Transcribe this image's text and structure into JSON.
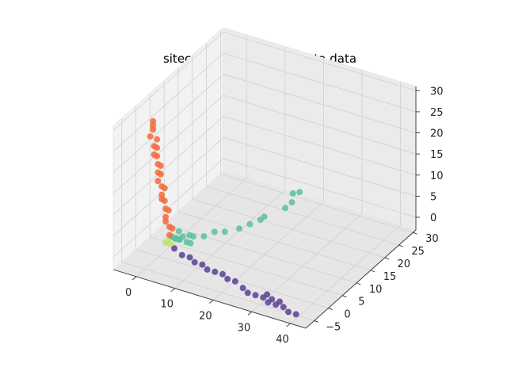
{
  "chart_data": {
    "type": "scatter",
    "projection": "3d",
    "title": "sitecore k=6 EM - pca_data data",
    "xlabel": "",
    "ylabel": "",
    "zlabel": "",
    "grid": true,
    "x_ticks": [
      "0",
      "10",
      "20",
      "30",
      "40"
    ],
    "y_ticks": [
      "−5",
      "0",
      "5",
      "10",
      "15",
      "20",
      "25",
      "30"
    ],
    "z_ticks": [
      "0",
      "5",
      "10",
      "15",
      "20",
      "25",
      "30"
    ],
    "xlim": [
      -6,
      44
    ],
    "ylim": [
      -8,
      31
    ],
    "zlim": [
      -3,
      31
    ],
    "series": [
      {
        "color": "#f26b3c",
        "points": [
          [
            -3,
            2,
            27
          ],
          [
            -3,
            2,
            26
          ],
          [
            -3,
            2,
            25
          ],
          [
            -3,
            1,
            24
          ],
          [
            -2,
            2,
            23
          ],
          [
            -2,
            1,
            22
          ],
          [
            -2,
            2,
            21
          ],
          [
            -2,
            1,
            20
          ],
          [
            -2,
            2,
            19
          ],
          [
            -1,
            1,
            18
          ],
          [
            -1,
            2,
            17
          ],
          [
            -1,
            1,
            16
          ],
          [
            -1,
            2,
            15
          ],
          [
            -1,
            1,
            14
          ],
          [
            0,
            1,
            13
          ],
          [
            0,
            2,
            12
          ],
          [
            0,
            1,
            11
          ],
          [
            0,
            1,
            10
          ],
          [
            0,
            2,
            9
          ],
          [
            1,
            1,
            8
          ],
          [
            1,
            2,
            7
          ],
          [
            1,
            1,
            6
          ],
          [
            1,
            1,
            5
          ],
          [
            2,
            1,
            4
          ],
          [
            2,
            2,
            3
          ],
          [
            2,
            1,
            2
          ]
        ]
      },
      {
        "color": "#5bbf9c",
        "points": [
          [
            26,
            12,
            12
          ],
          [
            27,
            13,
            12
          ],
          [
            25,
            13,
            9
          ],
          [
            24,
            12,
            8
          ],
          [
            20,
            10,
            6
          ],
          [
            19,
            10,
            5
          ],
          [
            17,
            9,
            4
          ],
          [
            15,
            8,
            3
          ],
          [
            12,
            7,
            2
          ],
          [
            10,
            6,
            2
          ],
          [
            8,
            5,
            1
          ],
          [
            6,
            4,
            1
          ],
          [
            5,
            4,
            1
          ],
          [
            4,
            3,
            1
          ],
          [
            3,
            3,
            2
          ],
          [
            2,
            2,
            1
          ],
          [
            3,
            2,
            1
          ],
          [
            4,
            2,
            1
          ],
          [
            2,
            3,
            0
          ],
          [
            3,
            3,
            0
          ],
          [
            5,
            3,
            0
          ],
          [
            6,
            3,
            0
          ],
          [
            2,
            1,
            0
          ],
          [
            1,
            1,
            0
          ]
        ]
      },
      {
        "color": "#5b3f96",
        "points": [
          [
            4,
            0,
            0
          ],
          [
            6,
            0,
            -1
          ],
          [
            8,
            0,
            -1
          ],
          [
            10,
            -1,
            -1
          ],
          [
            12,
            -1,
            -1
          ],
          [
            14,
            -2,
            -1
          ],
          [
            16,
            -2,
            -1
          ],
          [
            18,
            -2,
            -1
          ],
          [
            20,
            -3,
            -1
          ],
          [
            22,
            -3,
            -1
          ],
          [
            24,
            -3,
            -2
          ],
          [
            26,
            -4,
            -2
          ],
          [
            28,
            -4,
            -2
          ],
          [
            30,
            -4,
            -2
          ],
          [
            32,
            -5,
            -2
          ],
          [
            34,
            -5,
            -2
          ],
          [
            36,
            -5,
            -2
          ],
          [
            38,
            -6,
            -2
          ],
          [
            40,
            -6,
            -2
          ],
          [
            31,
            -4,
            -1
          ],
          [
            33,
            -5,
            -1
          ],
          [
            35,
            -5,
            -1
          ]
        ]
      },
      {
        "color": "#d4e87a",
        "points": [
          [
            1,
            1,
            0
          ],
          [
            2,
            1,
            0
          ],
          [
            1,
            2,
            0
          ],
          [
            2,
            2,
            -1
          ]
        ]
      }
    ]
  }
}
